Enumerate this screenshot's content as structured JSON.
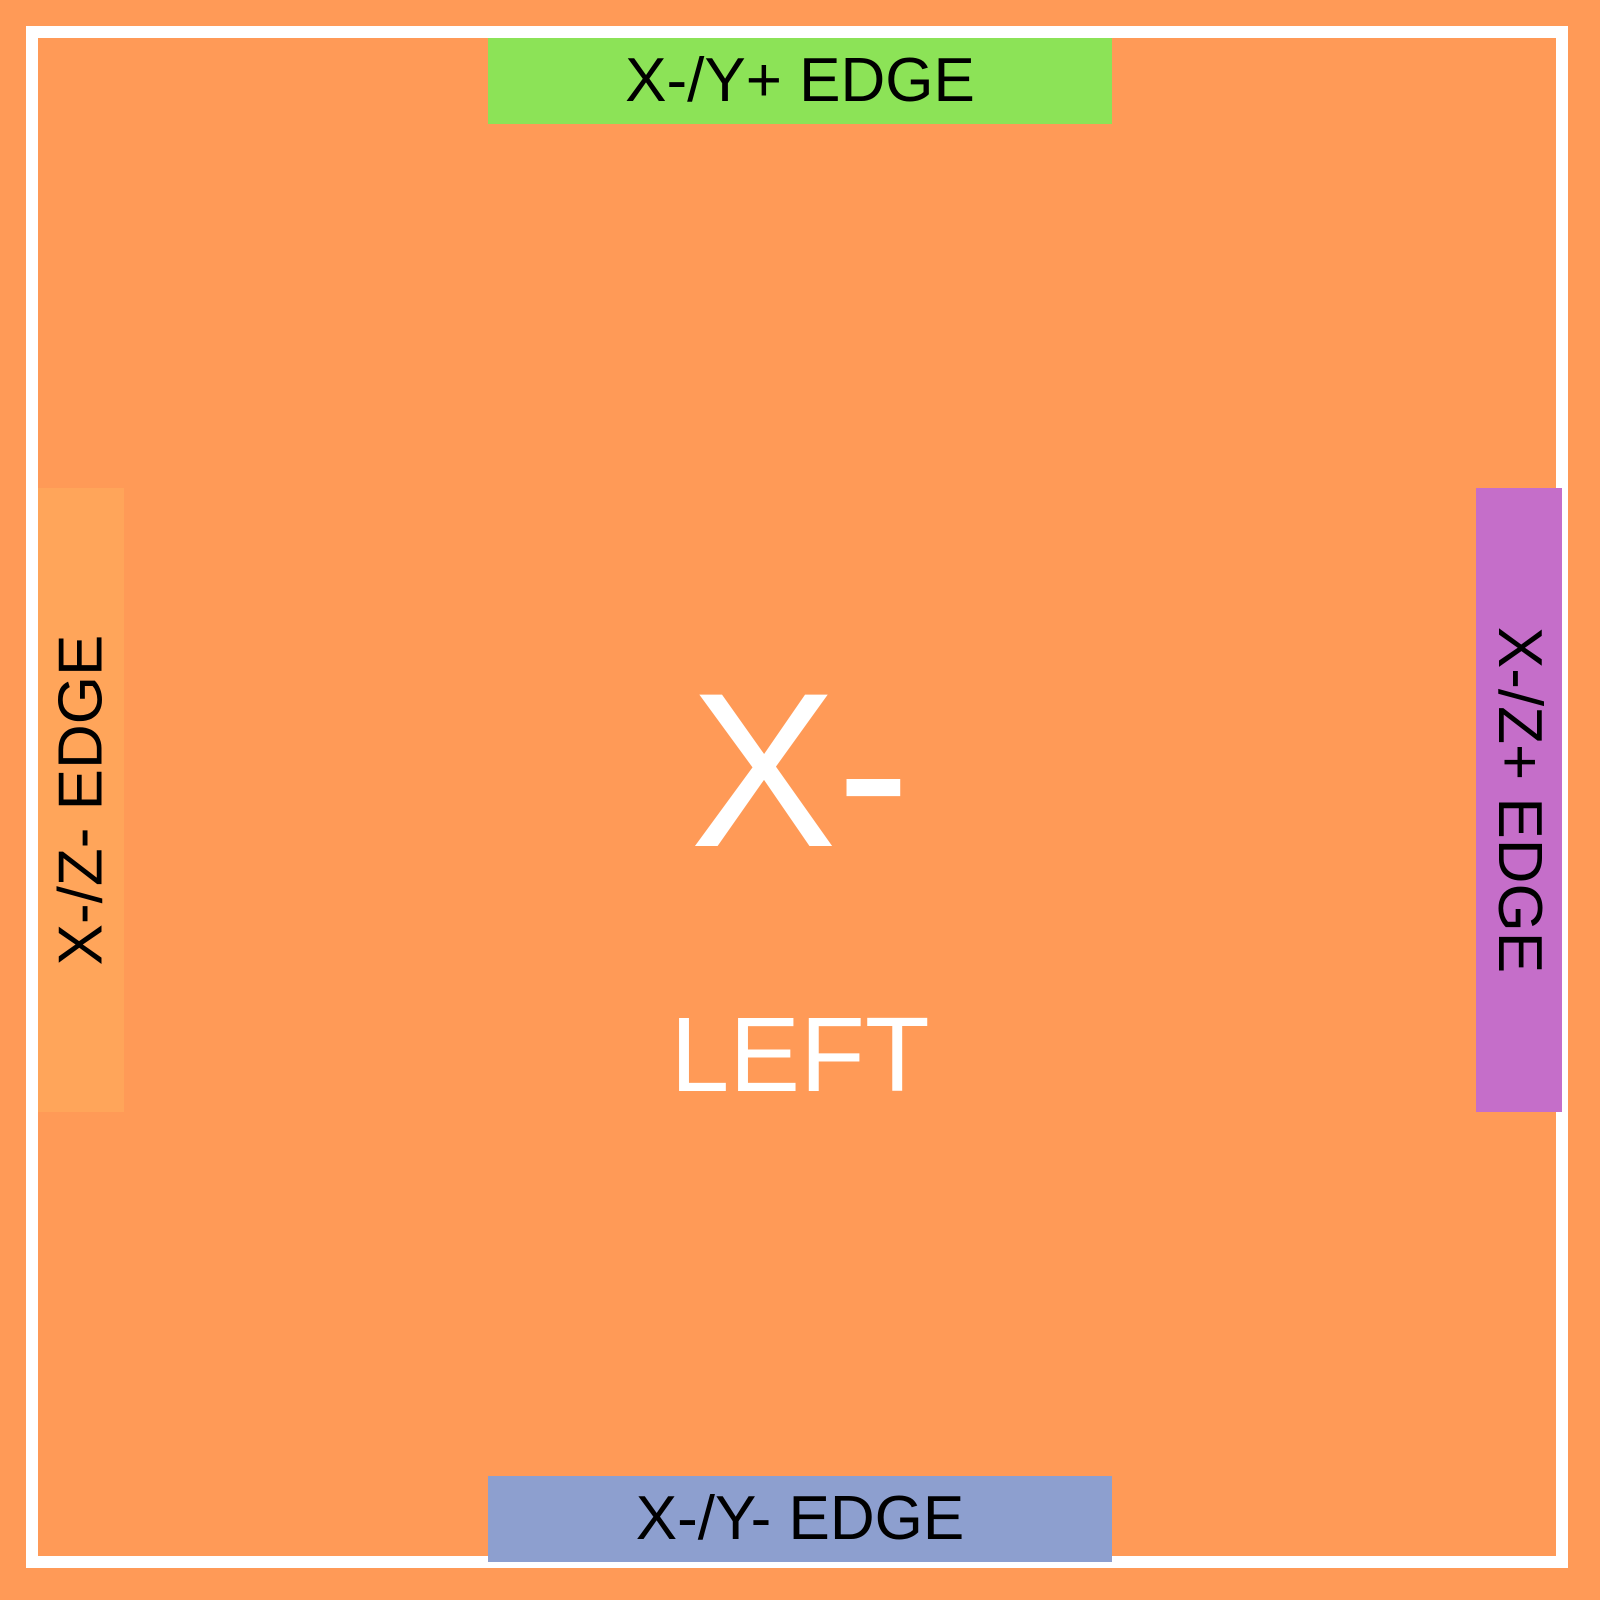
{
  "colors": {
    "background": "#ff9a57",
    "frame": "#ffffff",
    "edge_top": "#8ce357",
    "edge_bottom": "#8d9fcf",
    "edge_left": "#ffa55a",
    "edge_right": "#c56ec9",
    "edge_text": "#000000",
    "face_text": "#ffffff"
  },
  "face": {
    "symbol": "X-",
    "name": "LEFT"
  },
  "edges": {
    "top": "X-/Y+ EDGE",
    "bottom": "X-/Y- EDGE",
    "left": "X-/Z- EDGE",
    "right": "X-/Z+ EDGE"
  }
}
